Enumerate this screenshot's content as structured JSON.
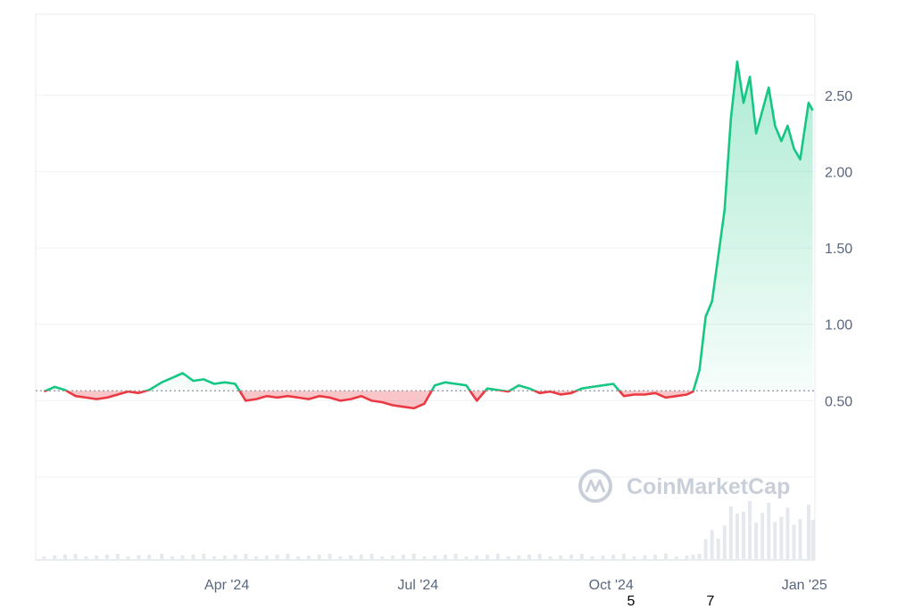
{
  "chart_data": {
    "type": "line",
    "watermark": "CoinMarketCap",
    "baseline": 0.565,
    "ylim": [
      0.5,
      2.94
    ],
    "y_ticks": [
      "0.50",
      "1.00",
      "1.50",
      "2.00",
      "2.50"
    ],
    "y_tick_values": [
      0.5,
      1.0,
      1.5,
      2.0,
      2.5
    ],
    "x_ticks": [
      "Apr '24",
      "Jul '24",
      "Oct '24",
      "Jan '25"
    ],
    "x_tick_values": [
      "2024-04-01",
      "2024-07-01",
      "2024-10-01",
      "2025-01-01"
    ],
    "extra_labels": [
      "5",
      "7"
    ],
    "colors": {
      "up": "#16c784",
      "down": "#ea3943",
      "grid": "#eff2f5",
      "axis": "#58667e"
    },
    "series": [
      {
        "x": [
          "2024-01-05",
          "2024-01-10",
          "2024-01-15",
          "2024-01-20",
          "2024-01-25",
          "2024-01-30",
          "2024-02-04",
          "2024-02-09",
          "2024-02-14",
          "2024-02-19",
          "2024-02-24",
          "2024-03-01",
          "2024-03-06",
          "2024-03-11",
          "2024-03-16",
          "2024-03-21",
          "2024-03-26",
          "2024-03-31",
          "2024-04-05",
          "2024-04-10",
          "2024-04-15",
          "2024-04-20",
          "2024-04-25",
          "2024-04-30",
          "2024-05-05",
          "2024-05-10",
          "2024-05-15",
          "2024-05-20",
          "2024-05-25",
          "2024-05-30",
          "2024-06-04",
          "2024-06-09",
          "2024-06-14",
          "2024-06-19",
          "2024-06-24",
          "2024-06-29",
          "2024-07-04",
          "2024-07-09",
          "2024-07-14",
          "2024-07-19",
          "2024-07-24",
          "2024-07-29",
          "2024-08-03",
          "2024-08-08",
          "2024-08-13",
          "2024-08-18",
          "2024-08-23",
          "2024-08-28",
          "2024-09-02",
          "2024-09-07",
          "2024-09-12",
          "2024-09-17",
          "2024-09-22",
          "2024-09-27",
          "2024-10-02",
          "2024-10-07",
          "2024-10-12",
          "2024-10-17",
          "2024-10-22",
          "2024-10-27",
          "2024-11-01",
          "2024-11-06",
          "2024-11-09",
          "2024-11-12",
          "2024-11-15",
          "2024-11-18",
          "2024-11-21",
          "2024-11-24",
          "2024-11-27",
          "2024-11-30",
          "2024-12-03",
          "2024-12-06",
          "2024-12-09",
          "2024-12-12",
          "2024-12-15",
          "2024-12-18",
          "2024-12-21",
          "2024-12-24",
          "2024-12-27",
          "2024-12-30",
          "2025-01-03",
          "2025-01-05"
        ],
        "y": [
          0.56,
          0.59,
          0.57,
          0.53,
          0.52,
          0.51,
          0.52,
          0.54,
          0.56,
          0.55,
          0.57,
          0.62,
          0.65,
          0.68,
          0.63,
          0.64,
          0.61,
          0.62,
          0.61,
          0.5,
          0.51,
          0.53,
          0.52,
          0.53,
          0.52,
          0.51,
          0.53,
          0.52,
          0.5,
          0.51,
          0.53,
          0.5,
          0.49,
          0.47,
          0.46,
          0.45,
          0.48,
          0.6,
          0.62,
          0.61,
          0.6,
          0.5,
          0.58,
          0.57,
          0.56,
          0.6,
          0.58,
          0.55,
          0.56,
          0.54,
          0.55,
          0.58,
          0.59,
          0.6,
          0.61,
          0.53,
          0.54,
          0.54,
          0.55,
          0.52,
          0.53,
          0.54,
          0.56,
          0.7,
          1.05,
          1.15,
          1.45,
          1.75,
          2.35,
          2.72,
          2.45,
          2.62,
          2.25,
          2.4,
          2.55,
          2.3,
          2.2,
          2.3,
          2.15,
          2.08,
          2.45,
          2.4
        ]
      }
    ]
  }
}
